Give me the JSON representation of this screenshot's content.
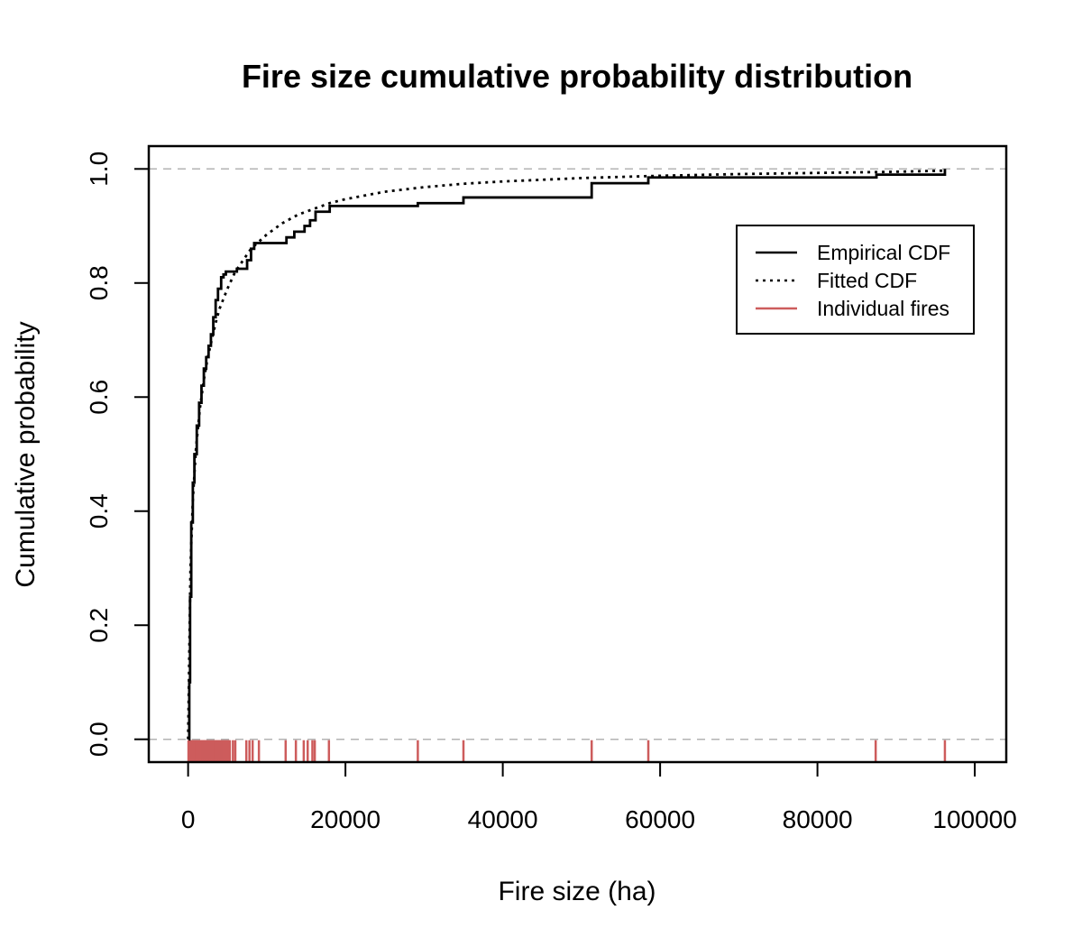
{
  "chart_data": {
    "type": "line",
    "title": "Fire size cumulative probability distribution",
    "xlabel": "Fire size (ha)",
    "ylabel": "Cumulative probability",
    "xlim": [
      -5000,
      104000
    ],
    "ylim": [
      -0.04,
      1.04
    ],
    "x_ticks": [
      0,
      20000,
      40000,
      60000,
      80000,
      100000
    ],
    "x_tick_labels": [
      "0",
      "20000",
      "40000",
      "60000",
      "80000",
      "100000"
    ],
    "y_ticks": [
      0.0,
      0.2,
      0.4,
      0.6,
      0.8,
      1.0
    ],
    "y_tick_labels": [
      "0.0",
      "0.2",
      "0.4",
      "0.6",
      "0.8",
      "1.0"
    ],
    "reference_lines": [
      0.0,
      1.0
    ],
    "grid": false,
    "legend": {
      "placement": "top-right",
      "entries": [
        {
          "label": "Empirical CDF",
          "style": "solid",
          "color": "#000000"
        },
        {
          "label": "Fitted CDF",
          "style": "dotted",
          "color": "#000000"
        },
        {
          "label": "Individual fires",
          "style": "solid",
          "color": "#CD5C5C"
        }
      ]
    },
    "series": [
      {
        "name": "Empirical CDF",
        "style": "step",
        "x": [
          50,
          150,
          250,
          400,
          600,
          800,
          1100,
          1400,
          1700,
          2000,
          2300,
          2600,
          2900,
          3200,
          3500,
          3800,
          4200,
          4500,
          4800,
          5200,
          5700,
          6200,
          7500,
          8000,
          8400,
          9000,
          12500,
          13500,
          14800,
          15500,
          16200,
          18000,
          29200,
          35000,
          51300,
          58500,
          87500,
          96200
        ],
        "y": [
          0.0,
          0.1,
          0.25,
          0.38,
          0.45,
          0.5,
          0.55,
          0.59,
          0.62,
          0.65,
          0.67,
          0.69,
          0.71,
          0.74,
          0.77,
          0.79,
          0.81,
          0.815,
          0.82,
          0.82,
          0.82,
          0.825,
          0.84,
          0.86,
          0.87,
          0.87,
          0.88,
          0.89,
          0.9,
          0.91,
          0.925,
          0.935,
          0.94,
          0.95,
          0.975,
          0.985,
          0.99,
          1.0
        ]
      },
      {
        "name": "Fitted CDF",
        "style": "dotted",
        "x": [
          0,
          300,
          600,
          1000,
          1500,
          2000,
          2500,
          3000,
          3500,
          4000,
          5000,
          6000,
          7000,
          8000,
          10000,
          12000,
          14000,
          16000,
          18000,
          20000,
          25000,
          30000,
          35000,
          40000,
          50000,
          60000,
          70000,
          80000,
          90000,
          96200
        ],
        "y": [
          0.0,
          0.3,
          0.42,
          0.51,
          0.58,
          0.63,
          0.67,
          0.7,
          0.73,
          0.755,
          0.79,
          0.82,
          0.84,
          0.86,
          0.885,
          0.905,
          0.92,
          0.93,
          0.94,
          0.947,
          0.96,
          0.968,
          0.974,
          0.978,
          0.984,
          0.988,
          0.991,
          0.993,
          0.995,
          0.997
        ]
      }
    ],
    "rug": {
      "name": "Individual fires",
      "x": [
        50,
        120,
        200,
        300,
        400,
        500,
        600,
        700,
        800,
        900,
        1000,
        1100,
        1200,
        1300,
        1400,
        1500,
        1600,
        1700,
        1800,
        1900,
        2000,
        2100,
        2200,
        2300,
        2400,
        2500,
        2600,
        2700,
        2800,
        2900,
        3000,
        3100,
        3200,
        3300,
        3400,
        3500,
        3600,
        3700,
        3800,
        3900,
        4000,
        4100,
        4200,
        4300,
        4400,
        4500,
        4600,
        4700,
        4800,
        4900,
        5000,
        5100,
        5200,
        5300,
        5700,
        6000,
        7400,
        7800,
        8200,
        9000,
        12400,
        13700,
        14700,
        15200,
        15800,
        16100,
        17900,
        29200,
        35000,
        51300,
        58500,
        87400,
        96200
      ]
    }
  }
}
